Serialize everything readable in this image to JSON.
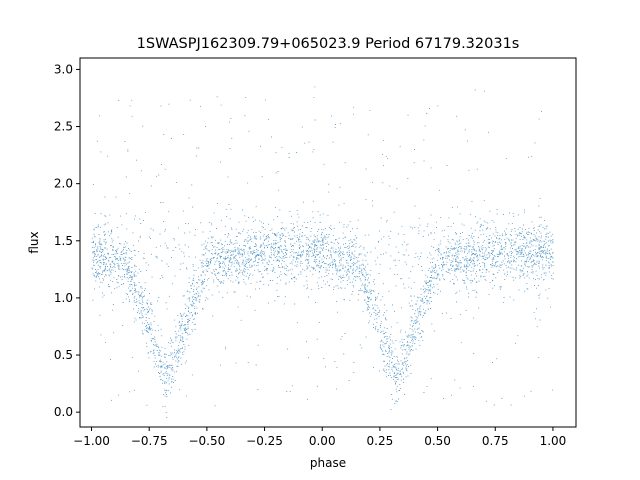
{
  "chart_data": {
    "type": "scatter",
    "title": "1SWASPJ162309.79+065023.9 Period 67179.32031s",
    "xlabel": "phase",
    "ylabel": "flux",
    "xlim": [
      -1.05,
      1.1
    ],
    "ylim": [
      -0.13,
      3.1
    ],
    "grid": false,
    "marker_color": "#1f77b4",
    "x_ticks": [
      -1.0,
      -0.75,
      -0.5,
      -0.25,
      0.0,
      0.25,
      0.5,
      0.75,
      1.0
    ],
    "x_tick_labels": [
      "−1.00",
      "−0.75",
      "−0.50",
      "−0.25",
      "0.00",
      "0.25",
      "0.50",
      "0.75",
      "1.00"
    ],
    "y_ticks": [
      0.0,
      0.5,
      1.0,
      1.5,
      2.0,
      2.5,
      3.0
    ],
    "y_tick_labels": [
      "0.0",
      "0.5",
      "1.0",
      "1.5",
      "2.0",
      "2.5",
      "3.0"
    ],
    "series": [
      {
        "x_range": [
          -1.0,
          1.0
        ],
        "baseline_flux": 1.38,
        "eclipse_centers": [
          -0.68,
          0.32
        ],
        "eclipse_min_flux": 0.3,
        "eclipse_half_width": 0.14,
        "profile": [
          {
            "phase": -1.0,
            "flux": 1.38
          },
          {
            "phase": -0.85,
            "flux": 1.3
          },
          {
            "phase": -0.75,
            "flux": 0.75
          },
          {
            "phase": -0.68,
            "flux": 0.3
          },
          {
            "phase": -0.6,
            "flux": 0.75
          },
          {
            "phase": -0.5,
            "flux": 1.3
          },
          {
            "phase": -0.2,
            "flux": 1.42
          },
          {
            "phase": 0.0,
            "flux": 1.38
          },
          {
            "phase": 0.15,
            "flux": 1.3
          },
          {
            "phase": 0.25,
            "flux": 0.75
          },
          {
            "phase": 0.32,
            "flux": 0.3
          },
          {
            "phase": 0.4,
            "flux": 0.75
          },
          {
            "phase": 0.5,
            "flux": 1.3
          },
          {
            "phase": 0.8,
            "flux": 1.42
          },
          {
            "phase": 1.0,
            "flux": 1.38
          }
        ]
      }
    ]
  }
}
